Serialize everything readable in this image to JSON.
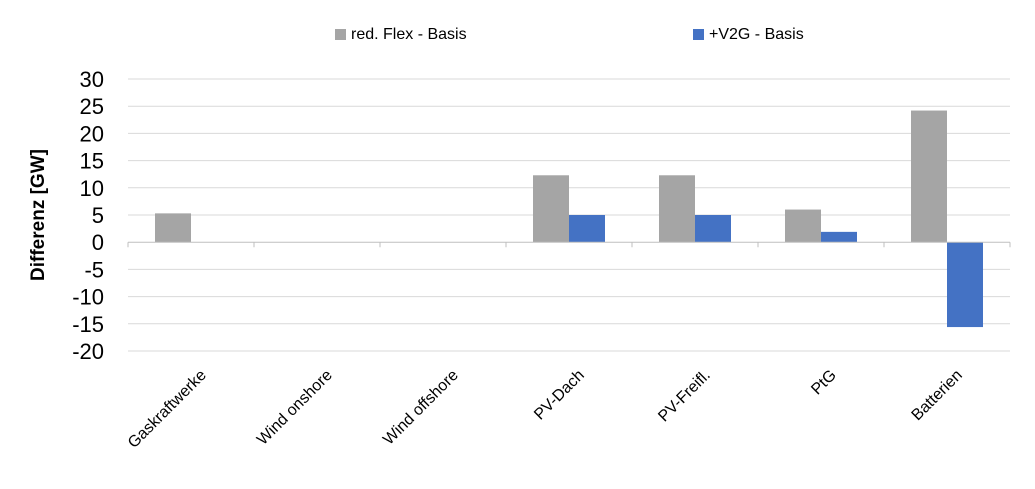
{
  "chart_data": {
    "type": "bar",
    "title": "",
    "xlabel": "",
    "ylabel": "Differenz [GW]",
    "ylim": [
      -20,
      30
    ],
    "yticks": [
      -20,
      -15,
      -10,
      -5,
      0,
      5,
      10,
      15,
      20,
      25,
      30
    ],
    "grid": true,
    "legend_position": "top",
    "categories": [
      "Gaskraftwerke",
      "Wind onshore",
      "Wind offshore",
      "PV-Dach",
      "PV-Freifl.",
      "PtG",
      "Batterien"
    ],
    "series": [
      {
        "name": "red. Flex - Basis",
        "color": "#a5a5a5",
        "values": [
          5.3,
          0,
          0,
          12.3,
          12.3,
          6.0,
          24.2
        ]
      },
      {
        "name": "+V2G - Basis",
        "color": "#4472c4",
        "values": [
          0,
          0,
          0,
          5.0,
          5.0,
          1.9,
          -15.6
        ]
      }
    ]
  }
}
